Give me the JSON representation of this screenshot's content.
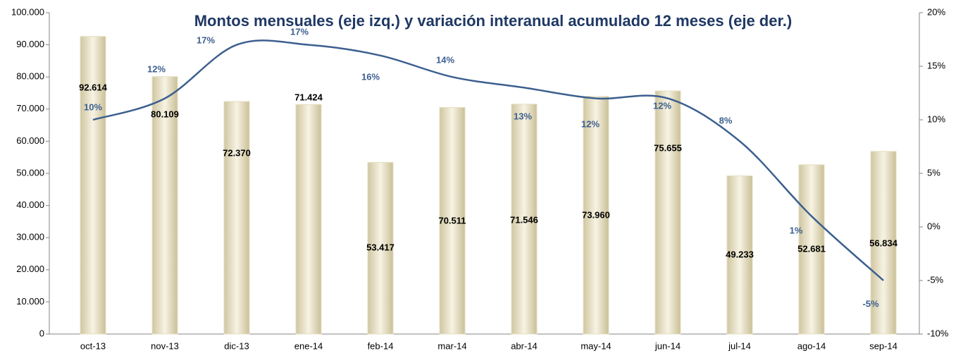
{
  "chart_data": {
    "type": "bar_line",
    "title": "Montos mensuales (eje izq.) y variación interanual acumulado 12 meses (eje der.)",
    "categories": [
      "oct-13",
      "nov-13",
      "dic-13",
      "ene-14",
      "feb-14",
      "mar-14",
      "abr-14",
      "may-14",
      "jun-14",
      "jul-14",
      "ago-14",
      "sep-14"
    ],
    "series": [
      {
        "type": "bar",
        "color": "#e6dfc2",
        "values": [
          92614,
          80109,
          72370,
          71424,
          53417,
          70511,
          71546,
          73960,
          75655,
          49233,
          52681,
          56834
        ],
        "value_labels": [
          "92.614",
          "80.109",
          "72.370",
          "71.424",
          "53.417",
          "70.511",
          "71.546",
          "73.960",
          "75.655",
          "49.233",
          "52.681",
          "56.834"
        ]
      },
      {
        "type": "line",
        "color": "#3c5f8f",
        "axis": "y2",
        "values": [
          10,
          12,
          17,
          17,
          16,
          14,
          13,
          12,
          12,
          8,
          1,
          -5
        ],
        "value_labels": [
          "10%",
          "12%",
          "17%",
          "17%",
          "16%",
          "14%",
          "13%",
          "12%",
          "12%",
          "8%",
          "1%",
          "-5%"
        ]
      }
    ],
    "ylim": [
      0,
      100000
    ],
    "yticks": [
      0,
      {
        "value": 10000,
        "label": "10.000"
      },
      {
        "value": 20000,
        "label": "20.000"
      },
      {
        "value": 30000,
        "label": "30.000"
      },
      {
        "value": 40000,
        "label": "40.000"
      },
      {
        "value": 50000,
        "label": "50.000"
      },
      {
        "value": 60000,
        "label": "60.000"
      },
      {
        "value": 70000,
        "label": "70.000"
      },
      {
        "value": 80000,
        "label": "80.000"
      },
      {
        "value": 90000,
        "label": "90.000"
      },
      {
        "value": 100000,
        "label": "100.000"
      }
    ],
    "y2lim": [
      -10,
      20
    ],
    "y2ticks": [
      {
        "value": -10,
        "label": "-10%"
      },
      {
        "value": -5,
        "label": "-5%"
      },
      {
        "value": 0,
        "label": "0%"
      },
      {
        "value": 5,
        "label": "5%"
      },
      {
        "value": 10,
        "label": "10%"
      },
      {
        "value": 15,
        "label": "15%"
      },
      {
        "value": 20,
        "label": "20%"
      }
    ],
    "grid": false
  }
}
